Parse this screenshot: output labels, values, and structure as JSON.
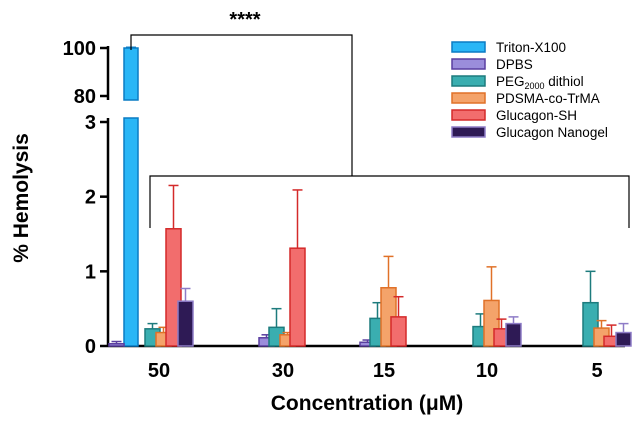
{
  "chart_data": {
    "type": "bar",
    "xlabel": "Concentration (μM)",
    "ylabel": "% Hemolysis",
    "categories": [
      "50",
      "30",
      "15",
      "10",
      "5"
    ],
    "y_axis_lower": {
      "range": [
        0,
        3
      ],
      "ticks": [
        "0",
        "1",
        "2",
        "3"
      ]
    },
    "y_axis_upper": {
      "range": [
        80,
        100
      ],
      "ticks": [
        "80",
        "100"
      ],
      "note": "broken axis"
    },
    "grid": false,
    "legend_position": "top-right",
    "series": [
      {
        "name": "Triton-X100",
        "color": "#29b6f6",
        "edge": "#0a7bc4",
        "values": [
          100,
          null,
          null,
          null,
          null
        ],
        "errors": [
          0.3,
          null,
          null,
          null,
          null
        ]
      },
      {
        "name": "DPBS",
        "color": "#9b8ddb",
        "edge": "#5a3fa0",
        "values": [
          0.03,
          0.11,
          0.05,
          null,
          null
        ],
        "errors": [
          0.03,
          0.04,
          0.03,
          null,
          null
        ]
      },
      {
        "name": "PEG2000 dithiol",
        "color": "#3aaeb0",
        "edge": "#1d7b7d",
        "values": [
          0.23,
          0.25,
          0.37,
          0.26,
          0.58
        ],
        "errors": [
          0.07,
          0.25,
          0.21,
          0.17,
          0.42
        ]
      },
      {
        "name": "PDSMA-co-TrMA",
        "color": "#f4a36a",
        "edge": "#e07128",
        "values": [
          0.18,
          0.15,
          0.78,
          0.61,
          0.24
        ],
        "errors": [
          0.07,
          0.03,
          0.42,
          0.45,
          0.1
        ]
      },
      {
        "name": "Glucagon-SH",
        "color": "#f26d6d",
        "edge": "#d42a2a",
        "values": [
          1.57,
          1.31,
          0.39,
          0.23,
          0.13
        ],
        "errors": [
          0.58,
          0.78,
          0.27,
          0.13,
          0.15
        ]
      },
      {
        "name": "Glucagon Nanogel",
        "color": "#2e1a55",
        "edge": "#8e7cc7",
        "values": [
          0.6,
          null,
          null,
          0.3,
          0.18
        ],
        "errors": [
          0.17,
          null,
          null,
          0.09,
          0.12
        ]
      }
    ],
    "legend": [
      {
        "name_main": "Triton-X100",
        "name_sub": "",
        "name_tail": ""
      },
      {
        "name_main": "DPBS",
        "name_sub": "",
        "name_tail": ""
      },
      {
        "name_main": "PEG",
        "name_sub": "2000",
        "name_tail": " dithiol"
      },
      {
        "name_main": "PDSMA-co-TrMA",
        "name_sub": "",
        "name_tail": ""
      },
      {
        "name_main": "Glucagon-SH",
        "name_sub": "",
        "name_tail": ""
      },
      {
        "name_main": "Glucagon Nanogel",
        "name_sub": "",
        "name_tail": ""
      }
    ],
    "annotations": [
      {
        "text": "****"
      }
    ]
  }
}
